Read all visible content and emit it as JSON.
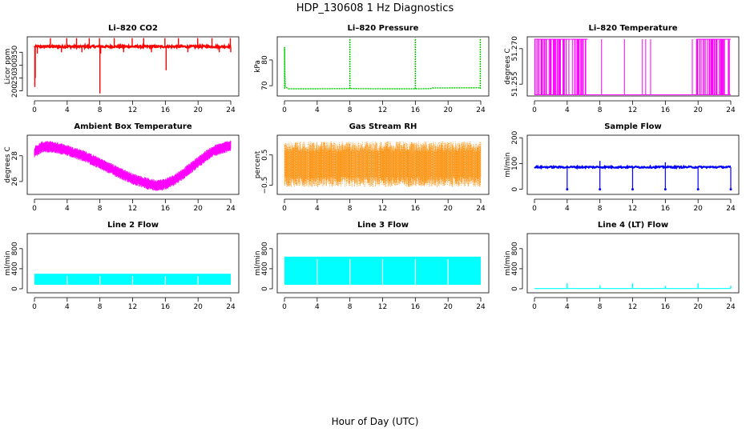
{
  "figure": {
    "title": "HDP_130608  1 Hz Diagnostics",
    "xlabel": "Hour of Day (UTC)"
  },
  "chart_data": [
    {
      "id": "co2",
      "type": "line",
      "title": "Li–820 CO2",
      "ylabel": "Licor ppm",
      "color": "#ff0000",
      "xlim": [
        0,
        24
      ],
      "ylim": [
        180,
        410
      ],
      "xticks": [
        0,
        4,
        8,
        12,
        16,
        20,
        24
      ],
      "yticks": [
        200,
        250,
        300,
        350
      ],
      "ytick_labels": [
        "200",
        "250",
        "300",
        "350"
      ],
      "baseline": 372,
      "noise": 8,
      "spikes": [
        {
          "x": 0.05,
          "y": 215
        },
        {
          "x": 0.1,
          "y": 250
        },
        {
          "x": 0.35,
          "y": 345
        },
        {
          "x": 1.95,
          "y": 405
        },
        {
          "x": 3.3,
          "y": 350
        },
        {
          "x": 3.95,
          "y": 405
        },
        {
          "x": 5.15,
          "y": 405
        },
        {
          "x": 5.8,
          "y": 350
        },
        {
          "x": 6.7,
          "y": 405
        },
        {
          "x": 7.95,
          "y": 405
        },
        {
          "x": 8.0,
          "y": 190
        },
        {
          "x": 8.1,
          "y": 345
        },
        {
          "x": 9.75,
          "y": 405
        },
        {
          "x": 10.9,
          "y": 350
        },
        {
          "x": 11.95,
          "y": 405
        },
        {
          "x": 13.35,
          "y": 405
        },
        {
          "x": 14.3,
          "y": 350
        },
        {
          "x": 15.95,
          "y": 405
        },
        {
          "x": 16.1,
          "y": 280
        },
        {
          "x": 17.6,
          "y": 405
        },
        {
          "x": 18.75,
          "y": 350
        },
        {
          "x": 19.95,
          "y": 405
        },
        {
          "x": 21.7,
          "y": 405
        },
        {
          "x": 22.6,
          "y": 350
        },
        {
          "x": 23.95,
          "y": 405
        },
        {
          "x": 24.0,
          "y": 350
        }
      ]
    },
    {
      "id": "pressure",
      "type": "line",
      "title": "Li–820 Pressure",
      "ylabel": "kPa",
      "color": "#00cc00",
      "xlim": [
        0,
        24
      ],
      "ylim": [
        66,
        89
      ],
      "xticks": [
        0,
        4,
        8,
        12,
        16,
        20,
        24
      ],
      "yticks": [
        70,
        80
      ],
      "ytick_labels": [
        "70",
        "80"
      ],
      "series": [
        {
          "name": "baseline",
          "x": [
            0,
            0.05,
            0.1,
            0.5,
            4,
            8,
            12,
            15.9,
            16.1,
            18,
            18.1,
            23.9
          ],
          "y": [
            85,
            75,
            69.5,
            68.8,
            68.8,
            68.9,
            68.8,
            68.8,
            68.8,
            68.9,
            69.1,
            69.2
          ]
        }
      ],
      "spikes": [
        {
          "x": 0.02,
          "y": 85
        },
        {
          "x": 8.0,
          "y": 88.5
        },
        {
          "x": 16.0,
          "y": 88.5
        },
        {
          "x": 23.95,
          "y": 88.5
        }
      ]
    },
    {
      "id": "licor_temp",
      "type": "line",
      "title": "Li–820 Temperature",
      "ylabel": "degrees C",
      "color": "#ff00ff",
      "xlim": [
        0,
        24
      ],
      "ylim": [
        51.25,
        51.275
      ],
      "xticks": [
        0,
        4,
        8,
        12,
        16,
        20,
        24
      ],
      "yticks": [
        51.255,
        51.27
      ],
      "ytick_labels": [
        "51.255",
        "51.270"
      ],
      "dense_ranges": [
        [
          0,
          6.5
        ],
        [
          19.8,
          24
        ]
      ],
      "sparse_x": [
        8.2,
        11.0,
        13.2,
        13.6,
        14.2,
        19.3
      ]
    },
    {
      "id": "ambient_temp",
      "type": "band",
      "title": "Ambient Box Temperature",
      "ylabel": "degrees C",
      "color": "#ff00ff",
      "xlim": [
        0,
        24
      ],
      "ylim": [
        25.0,
        29.6
      ],
      "xticks": [
        0,
        4,
        8,
        12,
        16,
        20,
        24
      ],
      "yticks": [
        26,
        28
      ],
      "ytick_labels": [
        "26",
        "28"
      ],
      "center": {
        "x": [
          0,
          1,
          2,
          3,
          4,
          5,
          6,
          7,
          8,
          9,
          10,
          11,
          12,
          13,
          14,
          15,
          16,
          17,
          18,
          19,
          20,
          21,
          22,
          23,
          24
        ],
        "y": [
          28.3,
          28.7,
          28.7,
          28.6,
          28.4,
          28.2,
          28.0,
          27.7,
          27.4,
          27.1,
          26.8,
          26.5,
          26.2,
          26.0,
          25.8,
          25.7,
          25.8,
          26.1,
          26.5,
          27.0,
          27.5,
          28.0,
          28.4,
          28.6,
          28.8
        ]
      },
      "halfwidth": 0.45
    },
    {
      "id": "rh",
      "type": "band",
      "title": "Gas Stream RH",
      "ylabel": "percent",
      "color": "#ff8c00",
      "xlim": [
        0,
        24
      ],
      "ylim": [
        -0.8,
        1.15
      ],
      "xticks": [
        0,
        4,
        8,
        12,
        16,
        20,
        24
      ],
      "yticks": [
        -0.5,
        0.5
      ],
      "ytick_labels": [
        "−0.5",
        "0.5"
      ],
      "low": -0.55,
      "high": 0.95,
      "fill_low": -0.15,
      "fill_high": 0.55
    },
    {
      "id": "sample_flow",
      "type": "line",
      "title": "Sample Flow",
      "ylabel": "ml/min",
      "color": "#0000ff",
      "xlim": [
        0,
        24
      ],
      "ylim": [
        -20,
        210
      ],
      "xticks": [
        0,
        4,
        8,
        12,
        16,
        20,
        24
      ],
      "yticks": [
        0,
        100,
        200
      ],
      "ytick_labels": [
        "0",
        "100",
        "200"
      ],
      "series": [
        {
          "name": "baseline",
          "x": [
            0,
            4,
            8,
            12,
            16,
            20,
            24
          ],
          "y": [
            88,
            87,
            86,
            85,
            85,
            85,
            86
          ]
        }
      ],
      "dips": [
        4,
        8,
        12,
        16,
        20,
        24
      ],
      "peaks": [
        {
          "x": 8,
          "y": 110
        },
        {
          "x": 16,
          "y": 105
        }
      ]
    },
    {
      "id": "line2",
      "type": "band",
      "title": "Line 2 Flow",
      "ylabel": "ml/min",
      "color": "#00ffff",
      "xlim": [
        0,
        24
      ],
      "ylim": [
        -80,
        1100
      ],
      "xticks": [
        0,
        4,
        8,
        12,
        16,
        20,
        24
      ],
      "yticks": [
        0,
        400,
        800
      ],
      "ytick_labels": [
        "0",
        "400",
        "800"
      ],
      "low": 80,
      "high": 300,
      "gaps": [
        4,
        8,
        12,
        16,
        20
      ]
    },
    {
      "id": "line3",
      "type": "band",
      "title": "Line 3 Flow",
      "ylabel": "ml/min",
      "color": "#00ffff",
      "xlim": [
        0,
        24
      ],
      "ylim": [
        -80,
        1100
      ],
      "xticks": [
        0,
        4,
        8,
        12,
        16,
        20,
        24
      ],
      "yticks": [
        0,
        400,
        800
      ],
      "ytick_labels": [
        "0",
        "400",
        "800"
      ],
      "low": 80,
      "high": 640,
      "gaps": [
        4,
        8,
        12,
        16,
        20
      ]
    },
    {
      "id": "line4",
      "type": "line",
      "title": "Line 4 (LT) Flow",
      "ylabel": "ml/min",
      "color": "#00ffff",
      "xlim": [
        0,
        24
      ],
      "ylim": [
        -80,
        1100
      ],
      "xticks": [
        0,
        4,
        8,
        12,
        16,
        20,
        24
      ],
      "yticks": [
        0,
        400,
        800
      ],
      "ytick_labels": [
        "0",
        "400",
        "800"
      ],
      "baseline": 5,
      "spikes": [
        {
          "x": 4,
          "y": 110
        },
        {
          "x": 8,
          "y": 70
        },
        {
          "x": 12,
          "y": 110
        },
        {
          "x": 16,
          "y": 60
        },
        {
          "x": 20,
          "y": 110
        },
        {
          "x": 24,
          "y": 60
        }
      ]
    }
  ]
}
